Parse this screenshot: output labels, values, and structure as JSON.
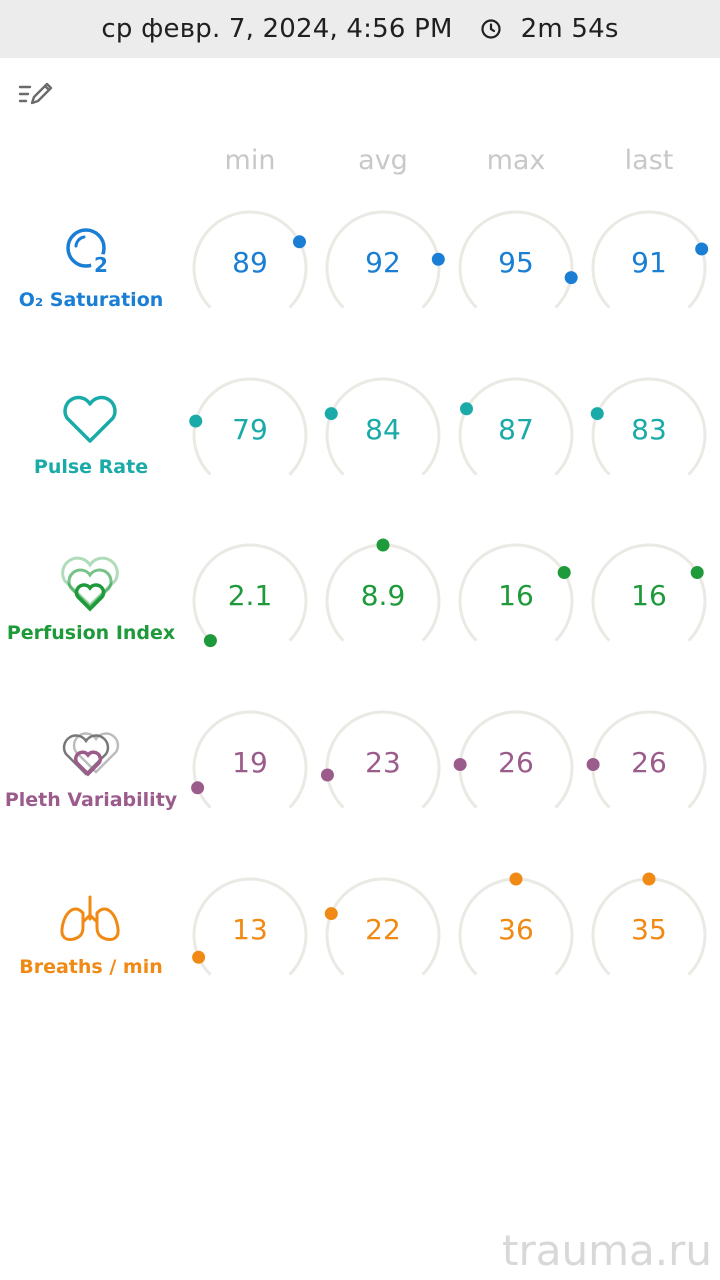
{
  "header": {
    "datetime": "ср февр. 7, 2024, 4:56 PM",
    "duration": "2m 54s"
  },
  "columns": [
    "min",
    "avg",
    "max",
    "last"
  ],
  "metrics": [
    {
      "id": "o2",
      "label": "O₂ Saturation",
      "icon": "o2-saturation-icon",
      "color": "#1a7fd4",
      "values": [
        "89",
        "92",
        "95",
        "91"
      ],
      "levels": [
        0.73,
        0.8,
        0.87,
        0.76
      ]
    },
    {
      "id": "pulse",
      "label": "Pulse Rate",
      "icon": "heart-icon",
      "color": "#1aaba8",
      "values": [
        "79",
        "84",
        "87",
        "83"
      ],
      "levels": [
        0.22,
        0.25,
        0.27,
        0.25
      ]
    },
    {
      "id": "perfusion",
      "label": "Perfusion Index",
      "icon": "perfusion-hearts-icon",
      "color": "#1e9a3a",
      "values": [
        "2.1",
        "8.9",
        "16",
        "16"
      ],
      "levels": [
        0.0,
        0.5,
        0.72,
        0.72
      ]
    },
    {
      "id": "pleth",
      "label": "Pleth Variability",
      "icon": "pleth-hearts-icon",
      "color": "#9b5c8c",
      "values": [
        "19",
        "23",
        "26",
        "26"
      ],
      "levels": [
        0.09,
        0.14,
        0.18,
        0.18
      ]
    },
    {
      "id": "breaths",
      "label": "Breaths / min",
      "icon": "lungs-icon",
      "color": "#f08a15",
      "values": [
        "13",
        "22",
        "36",
        "35"
      ],
      "levels": [
        0.08,
        0.25,
        0.5,
        0.5
      ]
    }
  ],
  "gauge_style": {
    "track_color": "#ebe9e4"
  },
  "watermark": "trauma.ru"
}
